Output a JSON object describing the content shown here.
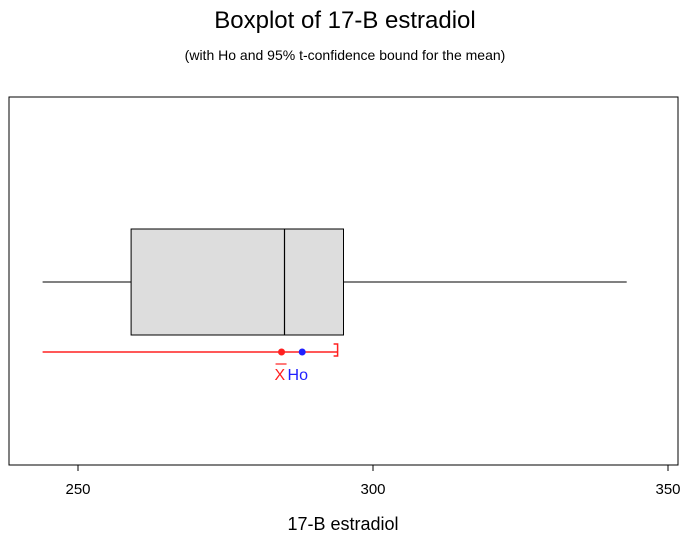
{
  "chart_data": {
    "type": "boxplot",
    "title": "Boxplot of 17-B estradiol",
    "subtitle": "(with Ho and 95% t-confidence bound for the mean)",
    "xlabel": "17-B estradiol",
    "xlim": [
      244,
      350
    ],
    "xticks": [
      250,
      300,
      350
    ],
    "box": {
      "whisker_low": 244,
      "q1": 259,
      "median": 285,
      "q3": 295,
      "whisker_high": 343
    },
    "mean": 284.5,
    "ho": 288,
    "ci": {
      "lower": 244,
      "upper": 294
    },
    "markers": {
      "mean_label": "X",
      "ho_label": "Ho"
    },
    "colors": {
      "box_fill": "#dddddd",
      "box_edge": "#000000",
      "mean_and_ci": "#ff2020",
      "ho": "#2020ff"
    }
  }
}
